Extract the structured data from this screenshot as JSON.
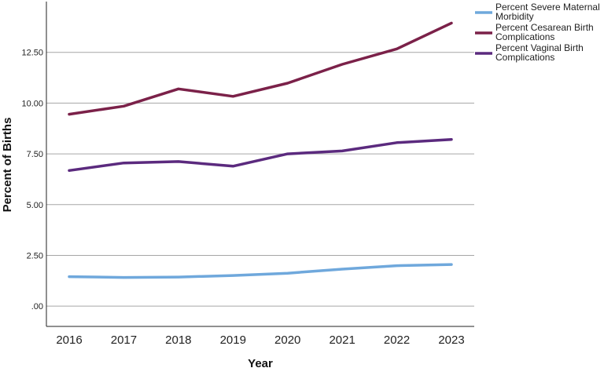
{
  "chart_data": {
    "type": "line",
    "xlabel": "Year",
    "ylabel": "Percent of Births",
    "x": [
      "2016",
      "2017",
      "2018",
      "2019",
      "2020",
      "2021",
      "2022",
      "2023"
    ],
    "ylim": [
      -1.0,
      15.0
    ],
    "yticks": [
      0,
      2.5,
      5.0,
      7.5,
      10.0,
      12.5
    ],
    "ytick_labels": [
      ".00",
      "2.50",
      "5.00",
      "7.50",
      "10.00",
      "12.50"
    ],
    "grid": "horizontal",
    "legend_position": "top-right outside",
    "series": [
      {
        "name": "Percent Severe Maternal Morbidity",
        "name_lines": [
          "Percent Severe Maternal",
          "Morbidity"
        ],
        "color": "#6fa8dc",
        "values": [
          1.45,
          1.41,
          1.43,
          1.51,
          1.62,
          1.82,
          1.99,
          2.05
        ]
      },
      {
        "name": "Percent Cesarean Birth Complications",
        "name_lines": [
          "Percent Cesarean Birth",
          "Complications"
        ],
        "color": "#7b2149",
        "values": [
          9.45,
          9.85,
          10.7,
          10.33,
          10.98,
          11.91,
          12.67,
          13.94
        ]
      },
      {
        "name": "Percent Vaginal Birth Complications",
        "name_lines": [
          "Percent Vaginal Birth",
          "Complications"
        ],
        "color": "#5b2a7e",
        "values": [
          6.68,
          7.05,
          7.12,
          6.89,
          7.5,
          7.64,
          8.05,
          8.21
        ]
      }
    ]
  }
}
